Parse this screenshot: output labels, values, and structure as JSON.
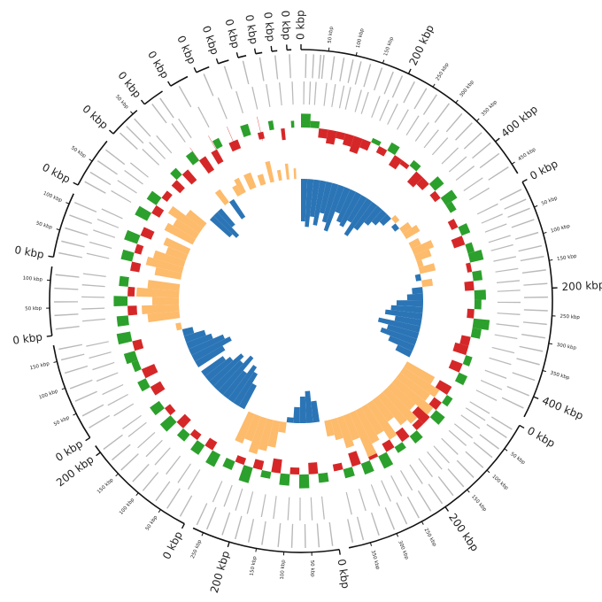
{
  "chart_data": {
    "type": "circos",
    "colors": {
      "gene": "#b9b9b9",
      "rna": "#d62728",
      "gc_pos": "#2ca02c",
      "gc_neg": "#d62728",
      "skew_pos": "#fdbb6c",
      "skew_neg": "#2b75b6",
      "axis": "#111111"
    },
    "contigs": [
      {
        "length": 470,
        "ticks": [
          {
            "value": 0,
            "label": "0 kbp"
          },
          {
            "value": 50,
            "label": "50 kbp"
          },
          {
            "value": 100,
            "label": "100 kbp"
          },
          {
            "value": 150,
            "label": "150 kbp"
          },
          {
            "value": 200,
            "label": "200 kbp"
          },
          {
            "value": 250,
            "label": "250 kbp"
          },
          {
            "value": 300,
            "label": "300 kbp"
          },
          {
            "value": 350,
            "label": "350 kbp"
          },
          {
            "value": 400,
            "label": "400 kbp"
          },
          {
            "value": 450,
            "label": "450 kbp"
          }
        ],
        "fwd": [
          8,
          22,
          35,
          41,
          60,
          78,
          95,
          110,
          128,
          150,
          172,
          190,
          215,
          240,
          262,
          290,
          320,
          345,
          370,
          395,
          420,
          450
        ],
        "rev": [
          5,
          18,
          30,
          52,
          70,
          88,
          102,
          125,
          140,
          165,
          185,
          205,
          230,
          255,
          280,
          305,
          330,
          360,
          385,
          410,
          440,
          465
        ],
        "gc": [
          0.6,
          0.3,
          -0.4,
          -0.6,
          -0.3,
          -0.5,
          -0.7,
          -0.4,
          0.2,
          -0.3,
          0.4,
          -0.5,
          -0.2,
          0.3,
          -0.6,
          -0.4,
          0.5,
          -0.3,
          0.6,
          0.3
        ],
        "skew": [
          -0.8,
          -0.9,
          -0.7,
          -0.85,
          -0.6,
          -0.75,
          -0.9,
          -0.5,
          -0.65,
          -0.7,
          -0.55,
          -0.8,
          -0.6,
          -0.4,
          -0.3,
          -0.2,
          0.1,
          -0.1,
          0.2,
          0.3
        ]
      },
      {
        "length": 440,
        "ticks": [
          {
            "value": 0,
            "label": "0 kbp"
          },
          {
            "value": 50,
            "label": "50 kbp"
          },
          {
            "value": 100,
            "label": "100 kbp"
          },
          {
            "value": 150,
            "label": "150 kbp"
          },
          {
            "value": 200,
            "label": "200 kbp"
          },
          {
            "value": 250,
            "label": "250 kbp"
          },
          {
            "value": 300,
            "label": "300 kbp"
          },
          {
            "value": 350,
            "label": "350 kbp"
          },
          {
            "value": 400,
            "label": "400 kbp"
          }
        ],
        "fwd": [
          10,
          30,
          48,
          70,
          95,
          120,
          140,
          165,
          190,
          215,
          240,
          265,
          290,
          315,
          340,
          370,
          400,
          425
        ],
        "rev": [
          15,
          38,
          60,
          85,
          105,
          130,
          155,
          180,
          200,
          225,
          250,
          275,
          300,
          330,
          355,
          385,
          410,
          435
        ],
        "gc": [
          -0.3,
          0.4,
          -0.5,
          0.3,
          0.6,
          -0.2,
          0.4,
          -0.4,
          0.5,
          0.3,
          -0.3,
          0.7,
          0.4,
          -0.4,
          -0.6,
          0.3,
          -0.5,
          0.4
        ],
        "skew": [
          0.2,
          0.4,
          0.3,
          0.1,
          0.3,
          -0.1,
          0.2,
          -0.2,
          -0.3,
          -0.5,
          -0.6,
          -0.7,
          -0.5,
          -0.8,
          -0.6,
          -0.7,
          -0.5,
          -0.3
        ]
      },
      {
        "length": 390,
        "ticks": [
          {
            "value": 0,
            "label": "0 kbp"
          },
          {
            "value": 50,
            "label": "50 kbp"
          },
          {
            "value": 100,
            "label": "100 kbp"
          },
          {
            "value": 150,
            "label": "150 kbp"
          },
          {
            "value": 200,
            "label": "200 kbp"
          },
          {
            "value": 250,
            "label": "250 kbp"
          },
          {
            "value": 300,
            "label": "300 kbp"
          },
          {
            "value": 350,
            "label": "350 kbp"
          }
        ],
        "fwd": [
          12,
          30,
          55,
          75,
          100,
          125,
          150,
          175,
          200,
          225,
          250,
          275,
          300,
          330,
          360,
          380
        ],
        "rev": [
          8,
          25,
          45,
          70,
          90,
          115,
          140,
          160,
          185,
          210,
          235,
          260,
          285,
          310,
          340,
          370
        ],
        "gc": [
          -0.6,
          0.3,
          -0.4,
          0.5,
          -0.7,
          -0.3,
          0.4,
          -0.5,
          0.3,
          -0.4,
          0.6,
          -0.3,
          0.5,
          -0.6,
          0.4,
          -0.3
        ],
        "skew": [
          0.6,
          0.8,
          0.7,
          0.9,
          0.6,
          0.8,
          0.7,
          0.5,
          0.8,
          0.6,
          0.7,
          0.9,
          0.5,
          0.6,
          0.4,
          0.3
        ]
      },
      {
        "length": 270,
        "ticks": [
          {
            "value": 0,
            "label": "0 kbp"
          },
          {
            "value": 50,
            "label": "50 kbp"
          },
          {
            "value": 100,
            "label": "100 kbp"
          },
          {
            "value": 150,
            "label": "150 kbp"
          },
          {
            "value": 200,
            "label": "200 kbp"
          },
          {
            "value": 250,
            "label": "250 kbp"
          }
        ],
        "fwd": [
          10,
          35,
          60,
          85,
          110,
          140,
          165,
          190,
          215,
          245,
          265
        ],
        "rev": [
          20,
          45,
          70,
          95,
          125,
          150,
          180,
          205,
          230,
          255
        ],
        "gc": [
          0.4,
          -0.5,
          0.6,
          -0.3,
          0.5,
          -0.6,
          0.3,
          -0.4,
          0.7,
          -0.3,
          0.4
        ],
        "skew": [
          -0.4,
          -0.6,
          -0.5,
          -0.3,
          -0.1,
          0.2,
          0.5,
          0.6,
          0.7,
          0.5,
          0.6
        ]
      },
      {
        "length": 215,
        "ticks": [
          {
            "value": 0,
            "label": "0 kbp"
          },
          {
            "value": 50,
            "label": "50 kbp"
          },
          {
            "value": 100,
            "label": "100 kbp"
          },
          {
            "value": 150,
            "label": "150 kbp"
          },
          {
            "value": 200,
            "label": "200 kbp"
          }
        ],
        "fwd": [
          12,
          40,
          65,
          95,
          120,
          150,
          175,
          200
        ],
        "rev": [
          25,
          50,
          80,
          110,
          135,
          160,
          190,
          210
        ],
        "gc": [
          0.6,
          -0.4,
          0.5,
          -0.3,
          0.4,
          -0.5,
          0.6,
          -0.3,
          0.5
        ],
        "skew": [
          -0.5,
          -0.7,
          -0.8,
          -0.6,
          -0.9,
          -0.7,
          -0.8,
          -0.6,
          -0.5
        ]
      },
      {
        "length": 180,
        "ticks": [
          {
            "value": 0,
            "label": "0 kbp"
          },
          {
            "value": 50,
            "label": "50 kbp"
          },
          {
            "value": 100,
            "label": "100 kbp"
          },
          {
            "value": 150,
            "label": "150 kbp"
          }
        ],
        "fwd": [
          15,
          40,
          70,
          95,
          125,
          150,
          170
        ],
        "rev": [
          10,
          35,
          60,
          90,
          115,
          140,
          165
        ],
        "gc": [
          -0.5,
          0.4,
          -0.6,
          0.3,
          0.5,
          -0.4,
          0.6
        ],
        "skew": [
          -0.6,
          -0.8,
          -0.7,
          -0.5,
          -0.4,
          -0.2,
          0.1
        ]
      },
      {
        "length": 125,
        "ticks": [
          {
            "value": 0,
            "label": "0 kbp"
          },
          {
            "value": 50,
            "label": "50 kbp"
          },
          {
            "value": 100,
            "label": "100 kbp"
          }
        ],
        "fwd": [
          10,
          35,
          60,
          85,
          110
        ],
        "rev": [
          20,
          45,
          70,
          95,
          118
        ],
        "gc": [
          0.5,
          -0.4,
          0.6,
          -0.3,
          0.4
        ],
        "skew": [
          0.6,
          0.7,
          0.5,
          0.8,
          0.6
        ]
      },
      {
        "length": 120,
        "ticks": [
          {
            "value": 0,
            "label": "0 kbp"
          },
          {
            "value": 50,
            "label": "50 kbp"
          },
          {
            "value": 100,
            "label": "100 kbp"
          }
        ],
        "fwd": [
          8,
          30,
          55,
          80,
          105
        ],
        "rev": [
          18,
          42,
          68,
          92,
          115
        ],
        "gc": [
          -0.4,
          0.5,
          -0.3,
          0.6,
          -0.5
        ],
        "skew": [
          0.5,
          0.7,
          0.6,
          0.4,
          0.5
        ]
      },
      {
        "length": 95,
        "ticks": [
          {
            "value": 0,
            "label": "0 kbp"
          },
          {
            "value": 50,
            "label": "50 kbp"
          }
        ],
        "fwd": [
          10,
          30,
          55,
          80
        ],
        "rev": [
          20,
          45,
          70,
          90
        ],
        "gc": [
          0.6,
          -0.4,
          0.5,
          -0.3
        ],
        "skew": [
          0.6,
          0.5,
          0.7,
          0.4
        ]
      },
      {
        "length": 60,
        "ticks": [
          {
            "value": 0,
            "label": "0 kbp"
          },
          {
            "value": 50,
            "label": "50 kbp"
          }
        ],
        "fwd": [
          8,
          25,
          45
        ],
        "rev": [
          15,
          35,
          55
        ],
        "gc": [
          -0.5,
          0.4,
          -0.6
        ],
        "skew": [
          -0.5,
          -0.6,
          -0.4
        ]
      },
      {
        "length": 40,
        "ticks": [
          {
            "value": 0,
            "label": "0 kbp"
          }
        ],
        "fwd": [
          10,
          28
        ],
        "rev": [
          18,
          35
        ],
        "gc": [
          0.5,
          -0.7
        ],
        "skew": [
          0.3,
          -0.4
        ],
        "rna": [
          20
        ]
      },
      {
        "length": 35,
        "ticks": [
          {
            "value": 0,
            "label": "0 kbp"
          }
        ],
        "fwd": [
          12
        ],
        "rev": [
          25
        ],
        "gc": [
          -0.6,
          0.4
        ],
        "skew": [
          0.2,
          0.3
        ],
        "rna": [
          15
        ]
      },
      {
        "length": 25,
        "ticks": [
          {
            "value": 0,
            "label": "0 kbp"
          }
        ],
        "fwd": [
          10
        ],
        "rev": [
          18
        ],
        "gc": [
          -0.4
        ],
        "skew": [
          0.3
        ],
        "rna": [
          12
        ]
      },
      {
        "length": 20,
        "ticks": [
          {
            "value": 0,
            "label": "0 kbp"
          }
        ],
        "fwd": [
          8
        ],
        "rev": [
          15
        ],
        "gc": [
          0.5
        ],
        "skew": [
          0.2
        ]
      },
      {
        "length": 15,
        "ticks": [
          {
            "value": 0,
            "label": "0 kbp"
          }
        ],
        "fwd": [
          6
        ],
        "rev": [
          12
        ],
        "gc": [
          -0.3
        ],
        "skew": [
          0.4
        ],
        "rna": [
          8
        ]
      },
      {
        "length": 12,
        "ticks": [
          {
            "value": 0,
            "label": "0 kbp"
          }
        ],
        "fwd": [
          5
        ],
        "rev": [
          9
        ],
        "gc": [
          0.4
        ],
        "skew": [
          0.2
        ]
      },
      {
        "length": 10,
        "ticks": [
          {
            "value": 0,
            "label": "0 kbp"
          }
        ],
        "fwd": [
          4
        ],
        "rev": [
          7
        ],
        "gc": [
          -0.5
        ],
        "skew": [
          0.3
        ]
      },
      {
        "length": 8,
        "ticks": [
          {
            "value": 0,
            "label": "0 kbp"
          }
        ],
        "fwd": [
          3
        ],
        "rev": [
          6
        ],
        "gc": [
          0.3
        ],
        "skew": [
          0.2
        ]
      }
    ]
  }
}
